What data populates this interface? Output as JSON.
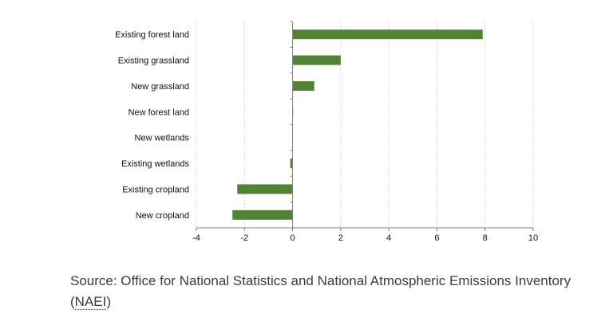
{
  "chart_data": {
    "type": "bar",
    "orientation": "horizontal",
    "categories": [
      "Existing forest land",
      "Existing grassland",
      "New grassland",
      "New forest land",
      "New wetlands",
      "Existing wetlands",
      "Existing cropland",
      "New cropland"
    ],
    "values": [
      7.9,
      2.0,
      0.9,
      0.02,
      0.0,
      -0.1,
      -2.3,
      -2.5
    ],
    "xlim": [
      -4,
      10
    ],
    "xticks": [
      -4,
      -2,
      0,
      2,
      4,
      6,
      8,
      10
    ],
    "xtick_labels": [
      "-4",
      "-2",
      "0",
      "2",
      "4",
      "6",
      "8",
      "10"
    ],
    "grid": "vertical dashed",
    "bar_color": "#548235",
    "title": "",
    "xlabel": "",
    "ylabel": ""
  },
  "source": {
    "prefix": "Source: Office for National Statistics and National Atmospheric Emissions Inventory (",
    "abbr": "NAEI",
    "suffix": ")"
  }
}
